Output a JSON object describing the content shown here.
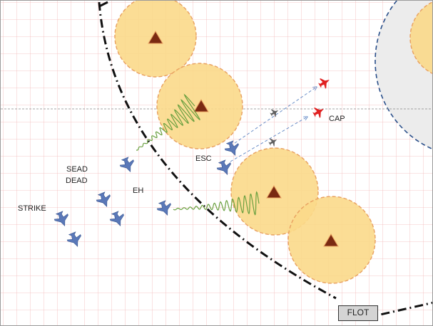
{
  "labels": {
    "strike": "STRIKE",
    "sead": "SEAD",
    "dead": "DEAD",
    "eh": "EH",
    "esc": "ESC",
    "cap": "CAP",
    "flot": "FLOT"
  },
  "colors": {
    "grid": "#f2b8b8",
    "threat_fill": "#fbd98a",
    "threat_stroke": "#e8a060",
    "sam_site": "#7a2a12",
    "friendly": "#5a78b8",
    "hostile": "#e02020",
    "jamming": "#6aa040",
    "boundary": "#111111",
    "sector": "#2a4f8a"
  },
  "icons": {
    "friendly": "friendly-aircraft-icon",
    "hostile": "hostile-aircraft-icon",
    "sam": "sam-site-icon"
  }
}
